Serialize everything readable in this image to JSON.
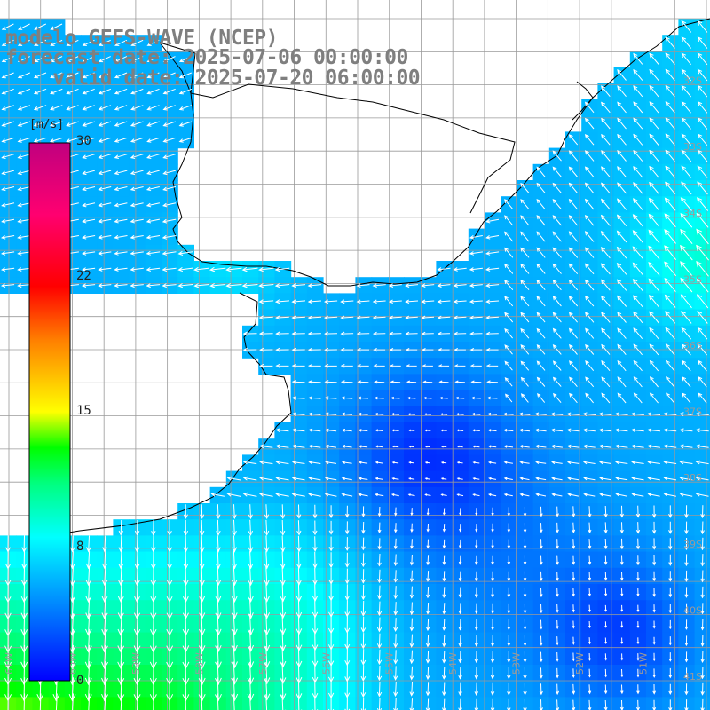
{
  "header": {
    "line1": "modelo GEFS-WAVE (NCEP)",
    "line2": "forecast date: 2025-07-06 00:00:00",
    "line3": "    valid date: 2025-07-20 06:00:00"
  },
  "colorbar": {
    "unit": "[m/s]",
    "ticks": [
      {
        "label": "30",
        "value": 30
      },
      {
        "label": "22",
        "value": 22
      },
      {
        "label": "15",
        "value": 15
      },
      {
        "label": "8",
        "value": 8
      },
      {
        "label": "0",
        "value": 0
      }
    ],
    "stops": [
      {
        "value": 0,
        "color": "#0000ff"
      },
      {
        "value": 4,
        "color": "#007fff"
      },
      {
        "value": 8,
        "color": "#00ffff"
      },
      {
        "value": 11,
        "color": "#00ff7f"
      },
      {
        "value": 13,
        "color": "#00ff00"
      },
      {
        "value": 15,
        "color": "#ffff00"
      },
      {
        "value": 19,
        "color": "#ff7f00"
      },
      {
        "value": 22,
        "color": "#ff0000"
      },
      {
        "value": 26,
        "color": "#ff0070"
      },
      {
        "value": 30,
        "color": "#c0007f"
      }
    ]
  },
  "map": {
    "lon_range": [
      -61,
      -50
    ],
    "lat_range": [
      -41,
      -31
    ],
    "lat_labels": [
      "32S",
      "33S",
      "34S",
      "35S",
      "36S",
      "37S",
      "38S",
      "39S",
      "40S",
      "41S"
    ],
    "lon_labels": [
      "61W",
      "60W",
      "59W",
      "58W",
      "57W",
      "56W",
      "55W",
      "54W",
      "53W",
      "52W",
      "51W"
    ],
    "label_color": "#9a9a9a"
  }
}
